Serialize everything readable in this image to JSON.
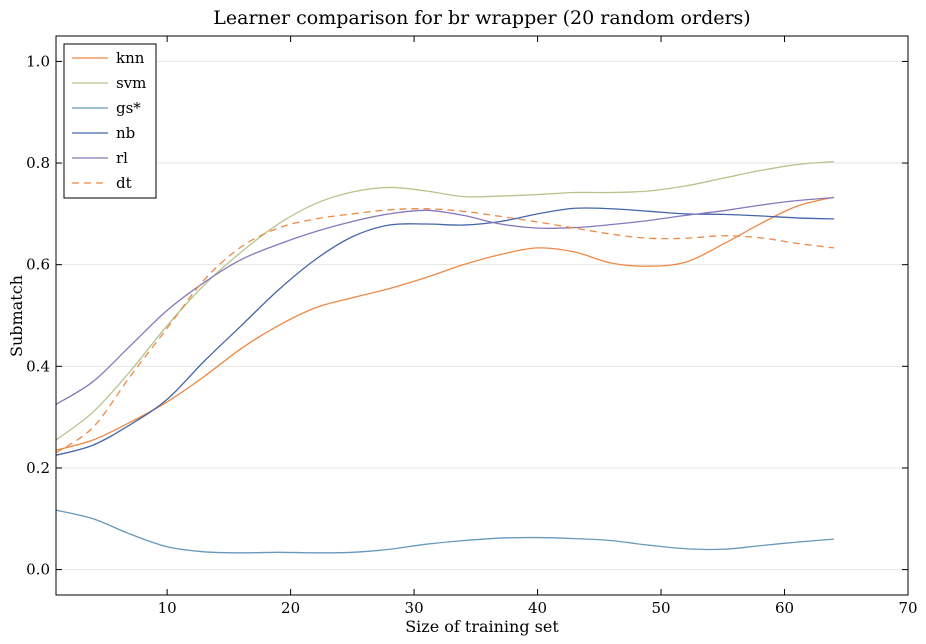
{
  "chart_data": {
    "type": "line",
    "title": "Learner comparison for br wrapper (20 random orders)",
    "xlabel": "Size of training set",
    "ylabel": "Submatch",
    "xlim": [
      1,
      70
    ],
    "ylim": [
      -0.05,
      1.05
    ],
    "xticks": [
      10,
      20,
      30,
      40,
      50,
      60,
      70
    ],
    "yticks": [
      0.0,
      0.2,
      0.4,
      0.6,
      0.8,
      1.0
    ],
    "ytick_labels": [
      "0.0",
      "0.2",
      "0.4",
      "0.6",
      "0.8",
      "1.0"
    ],
    "grid": "horizontal",
    "legend_position": "top-left",
    "x": [
      1,
      4,
      7,
      10,
      13,
      16,
      19,
      22,
      25,
      28,
      31,
      34,
      37,
      40,
      43,
      46,
      49,
      52,
      55,
      58,
      61,
      64
    ],
    "series": [
      {
        "name": "knn",
        "color": "#ee8844",
        "dash": "solid",
        "values": [
          0.235,
          0.255,
          0.29,
          0.33,
          0.38,
          0.435,
          0.48,
          0.515,
          0.535,
          0.553,
          0.575,
          0.6,
          0.62,
          0.633,
          0.625,
          0.603,
          0.597,
          0.605,
          0.64,
          0.68,
          0.715,
          0.733
        ]
      },
      {
        "name": "svm",
        "color": "#b6c48c",
        "dash": "solid",
        "values": [
          0.255,
          0.31,
          0.39,
          0.48,
          0.56,
          0.625,
          0.68,
          0.72,
          0.743,
          0.752,
          0.745,
          0.734,
          0.735,
          0.738,
          0.742,
          0.742,
          0.745,
          0.755,
          0.77,
          0.785,
          0.797,
          0.803
        ]
      },
      {
        "name": "gs*",
        "color": "#6699bb",
        "dash": "solid",
        "values": [
          0.117,
          0.1,
          0.07,
          0.045,
          0.035,
          0.033,
          0.034,
          0.033,
          0.034,
          0.04,
          0.05,
          0.057,
          0.062,
          0.063,
          0.061,
          0.057,
          0.048,
          0.041,
          0.04,
          0.047,
          0.054,
          0.06
        ]
      },
      {
        "name": "nb",
        "color": "#4466aa",
        "dash": "solid",
        "values": [
          0.225,
          0.245,
          0.285,
          0.335,
          0.41,
          0.48,
          0.55,
          0.61,
          0.655,
          0.678,
          0.68,
          0.678,
          0.685,
          0.7,
          0.711,
          0.71,
          0.705,
          0.7,
          0.699,
          0.696,
          0.692,
          0.69
        ]
      },
      {
        "name": "rl",
        "color": "#8877bb",
        "dash": "solid",
        "values": [
          0.325,
          0.37,
          0.44,
          0.51,
          0.565,
          0.61,
          0.64,
          0.665,
          0.685,
          0.7,
          0.707,
          0.697,
          0.68,
          0.672,
          0.673,
          0.679,
          0.687,
          0.697,
          0.706,
          0.717,
          0.726,
          0.732
        ]
      },
      {
        "name": "dt",
        "color": "#ee8844",
        "dash": "dashed",
        "values": [
          0.23,
          0.28,
          0.38,
          0.475,
          0.57,
          0.635,
          0.672,
          0.69,
          0.7,
          0.708,
          0.71,
          0.705,
          0.695,
          0.684,
          0.672,
          0.66,
          0.652,
          0.652,
          0.657,
          0.653,
          0.642,
          0.633
        ]
      }
    ]
  }
}
